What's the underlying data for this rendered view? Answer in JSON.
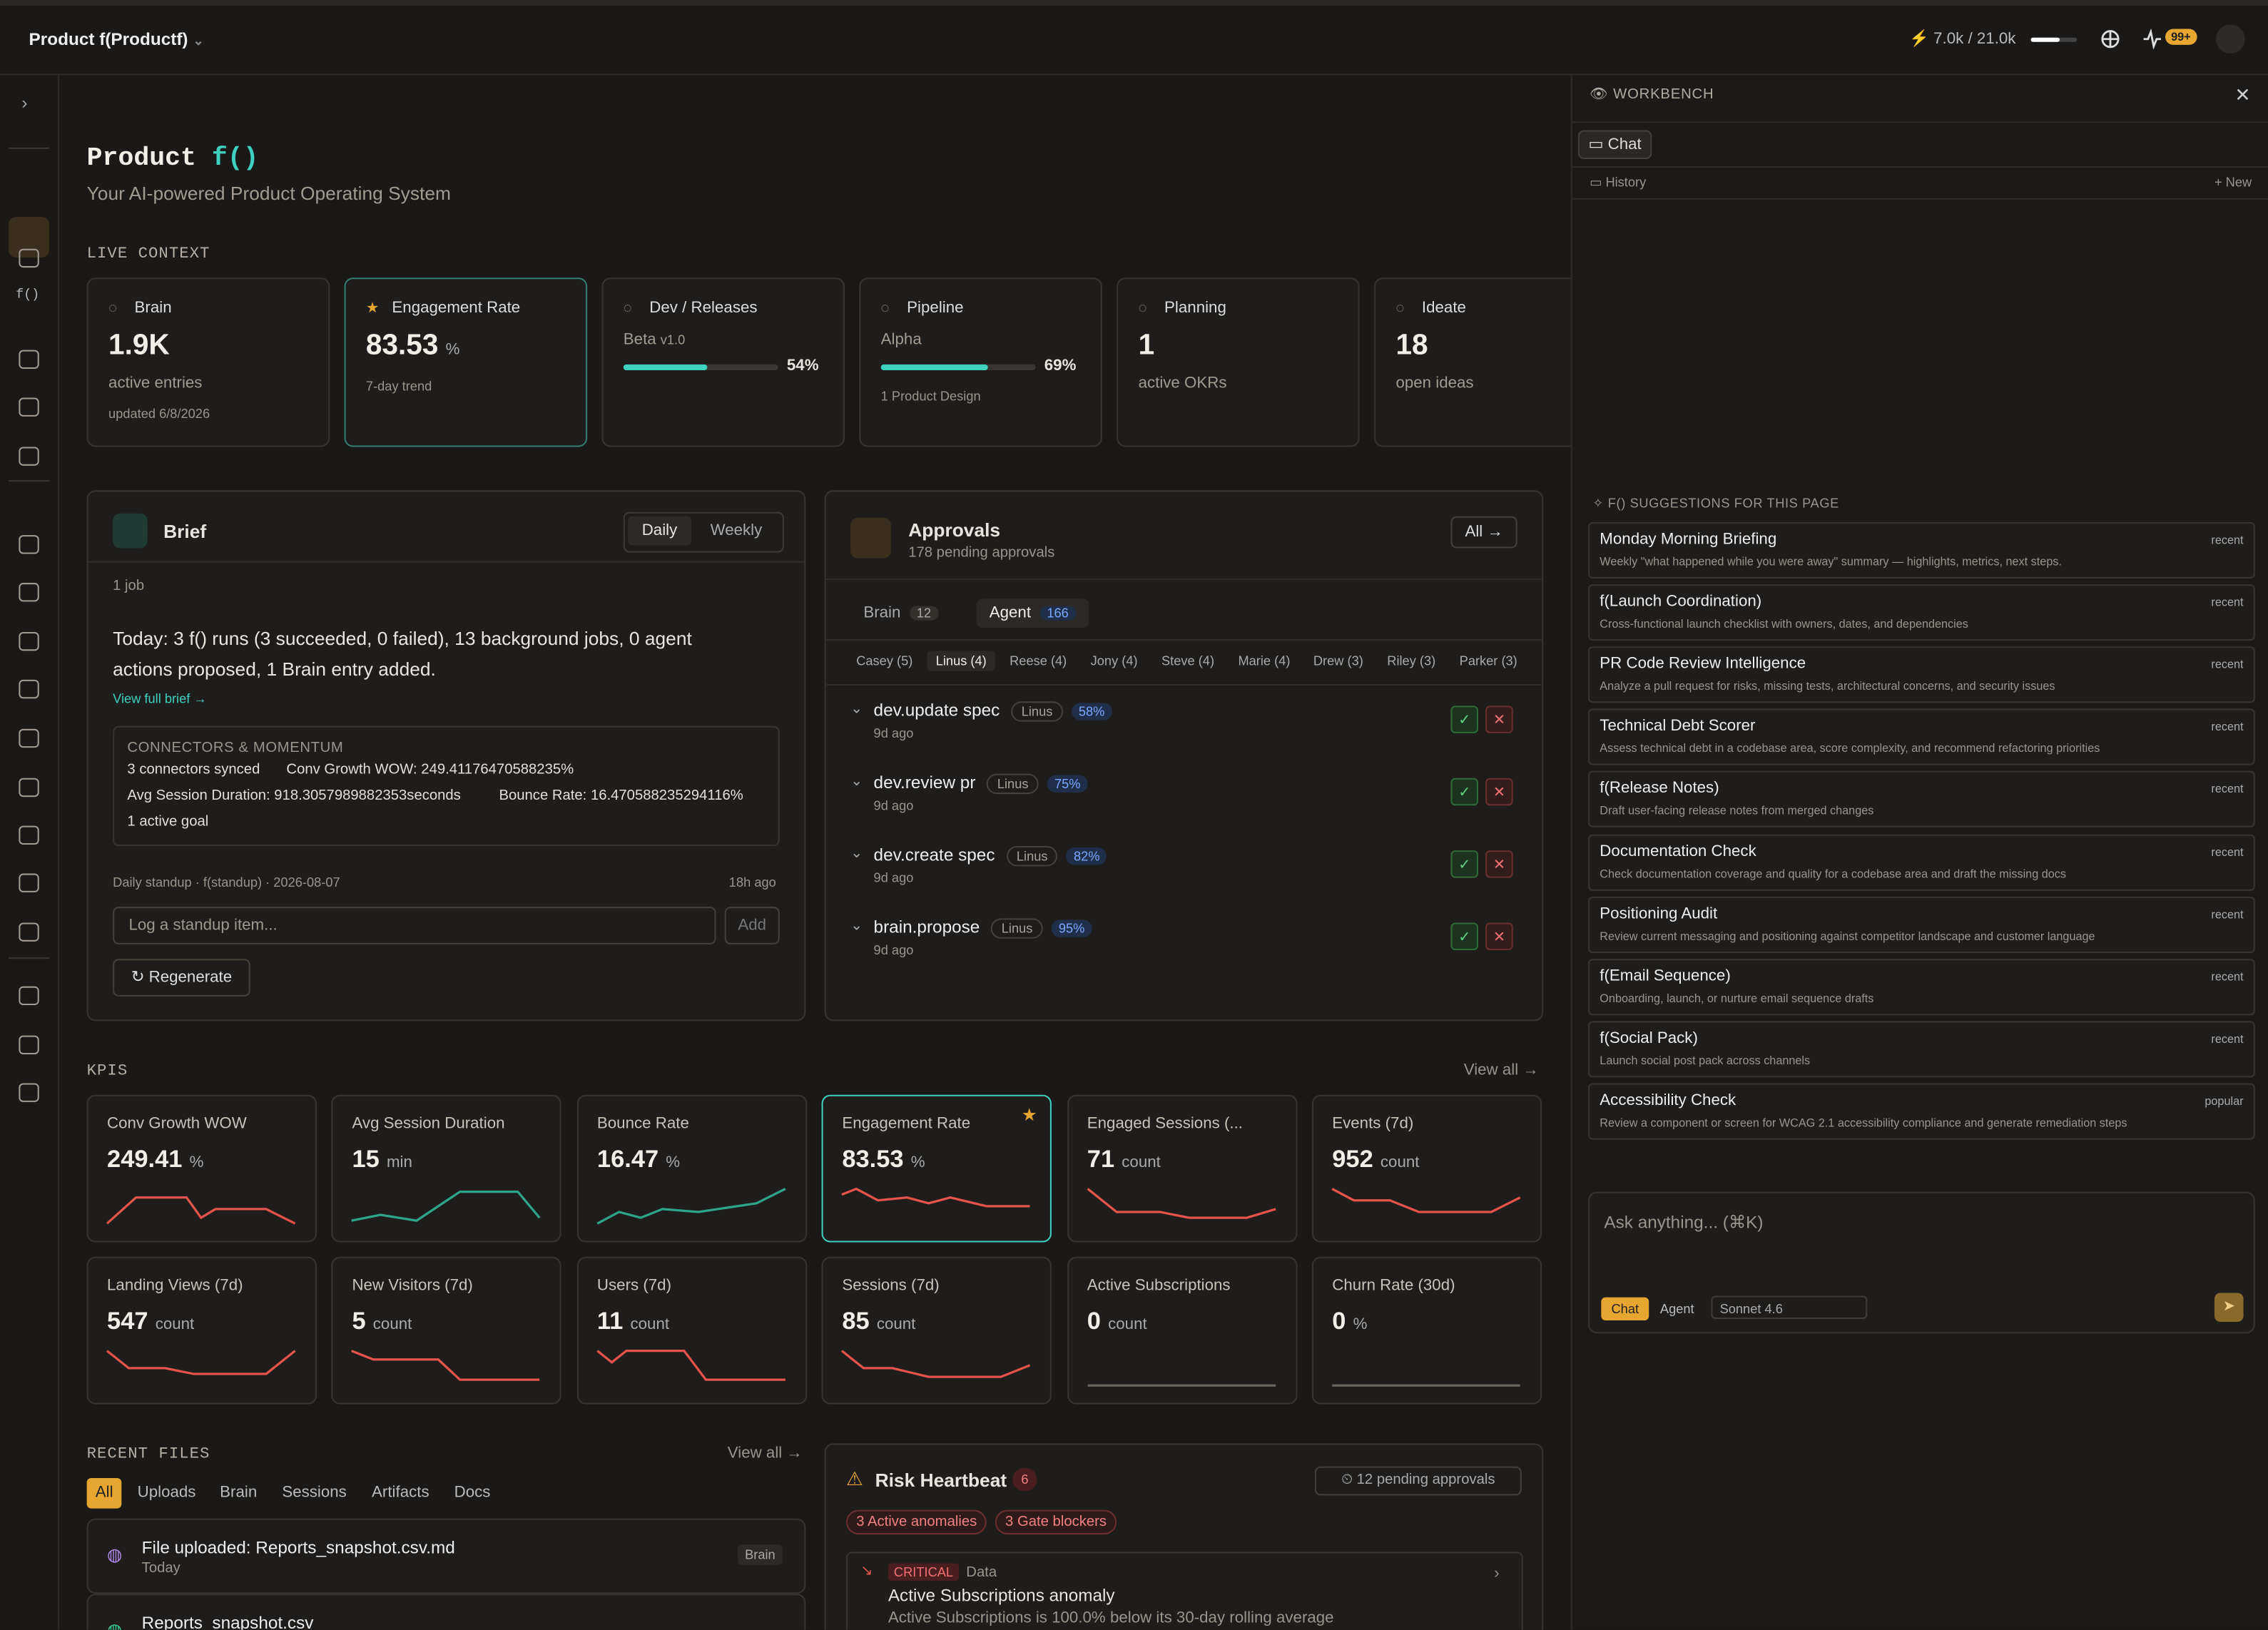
{
  "header": {
    "product": "Product f(Productf)",
    "usage": "7.0k / 21.0k",
    "badge": "99+"
  },
  "sidebar": {
    "fn_label": "f()"
  },
  "page": {
    "title": "Product",
    "title_fn": "f()",
    "subtitle": "Your AI-powered Product Operating System"
  },
  "live_context": {
    "label": "LIVE CONTEXT",
    "cards": [
      {
        "label": "Brain",
        "value": "1.9K",
        "sub": "active entries",
        "note": "updated 6/8/2026"
      },
      {
        "label": "Engagement Rate",
        "value": "83.53",
        "unit": "%",
        "note": "7-day trend",
        "starred": true
      },
      {
        "label": "Dev / Releases",
        "sub": "Beta",
        "version": "v1.0",
        "progress": 54,
        "progress_label": "54%"
      },
      {
        "label": "Pipeline",
        "sub": "Alpha",
        "progress": 69,
        "progress_label": "69%",
        "note": "1 Product Design"
      },
      {
        "label": "Planning",
        "value": "1",
        "sub": "active OKRs"
      },
      {
        "label": "Ideate",
        "value": "18",
        "sub": "open ideas"
      }
    ]
  },
  "brief": {
    "title": "Brief",
    "tabs": [
      "Daily",
      "Weekly"
    ],
    "jobs": "1 job",
    "summary": "Today: 3 f() runs (3 succeeded, 0 failed), 13 background jobs, 0 agent actions proposed, 1 Brain entry added.",
    "link": "View full brief →",
    "connectors_title": "CONNECTORS & MOMENTUM",
    "connectors": [
      [
        "3 connectors synced",
        "Conv Growth WOW: 249.41176470588235%"
      ],
      [
        "Avg Session Duration: 918.3057989882353seconds",
        "Bounce Rate: 16.470588235294116%"
      ],
      [
        "1 active goal"
      ]
    ],
    "standup": "Daily standup · f(standup) · 2026-08-07",
    "standup_time": "18h ago",
    "input_placeholder": "Log a standup item...",
    "add": "Add",
    "regenerate": "Regenerate"
  },
  "approvals": {
    "title": "Approvals",
    "subtitle": "178 pending approvals",
    "all": "All →",
    "tabs": [
      {
        "label": "Brain",
        "count": "12"
      },
      {
        "label": "Agent",
        "count": "166"
      }
    ],
    "people": [
      "Casey (5)",
      "Linus (4)",
      "Reese (4)",
      "Jony (4)",
      "Steve (4)",
      "Marie (4)",
      "Drew (3)",
      "Riley (3)",
      "Parker (3)"
    ],
    "items": [
      {
        "name": "dev.update spec",
        "owner": "Linus",
        "pct": "58%",
        "age": "9d ago"
      },
      {
        "name": "dev.review pr",
        "owner": "Linus",
        "pct": "75%",
        "age": "9d ago"
      },
      {
        "name": "dev.create spec",
        "owner": "Linus",
        "pct": "82%",
        "age": "9d ago"
      },
      {
        "name": "brain.propose",
        "owner": "Linus",
        "pct": "95%",
        "age": "9d ago"
      }
    ]
  },
  "kpis": {
    "label": "KPIS",
    "view_all": "View all →",
    "cards": [
      {
        "label": "Conv Growth WOW",
        "value": "249.41",
        "unit": "%"
      },
      {
        "label": "Avg Session Duration",
        "value": "15",
        "unit": "min"
      },
      {
        "label": "Bounce Rate",
        "value": "16.47",
        "unit": "%"
      },
      {
        "label": "Engagement Rate",
        "value": "83.53",
        "unit": "%",
        "starred": true
      },
      {
        "label": "Engaged Sessions (...",
        "value": "71",
        "unit": "count"
      },
      {
        "label": "Events (7d)",
        "value": "952",
        "unit": "count"
      },
      {
        "label": "Landing Views (7d)",
        "value": "547",
        "unit": "count"
      },
      {
        "label": "New Visitors (7d)",
        "value": "5",
        "unit": "count"
      },
      {
        "label": "Users (7d)",
        "value": "11",
        "unit": "count"
      },
      {
        "label": "Sessions (7d)",
        "value": "85",
        "unit": "count"
      },
      {
        "label": "Active Subscriptions",
        "value": "0",
        "unit": "count"
      },
      {
        "label": "Churn Rate (30d)",
        "value": "0",
        "unit": "%"
      }
    ]
  },
  "recent_files": {
    "label": "RECENT FILES",
    "view_all": "View all →",
    "tabs": [
      "All",
      "Uploads",
      "Brain",
      "Sessions",
      "Artifacts",
      "Docs"
    ],
    "files": [
      {
        "name": "File uploaded: Reports_snapshot.csv.md",
        "date": "Today",
        "tag": "Brain"
      },
      {
        "name": "Reports_snapshot.csv"
      }
    ]
  },
  "risk": {
    "title": "Risk Heartbeat",
    "count": "6",
    "pending": "12 pending approvals",
    "chips": [
      "3 Active anomalies",
      "3 Gate blockers"
    ],
    "item": {
      "severity": "CRITICAL",
      "area": "Data",
      "title": "Active Subscriptions anomaly",
      "desc": "Active Subscriptions is 100.0% below its 30-day rolling average"
    }
  },
  "workbench": {
    "title": "WORKBENCH",
    "chat_tab": "Chat",
    "history": "History",
    "new": "+ New",
    "suggestions_title": "F() SUGGESTIONS FOR THIS PAGE",
    "suggestions": [
      {
        "title": "Monday Morning Briefing",
        "desc": "Weekly \"what happened while you were away\" summary — highlights, metrics, next steps.",
        "tag": "recent"
      },
      {
        "title": "f(Launch Coordination)",
        "desc": "Cross-functional launch checklist with owners, dates, and dependencies",
        "tag": "recent"
      },
      {
        "title": "PR Code Review Intelligence",
        "desc": "Analyze a pull request for risks, missing tests, architectural concerns, and security issues",
        "tag": "recent"
      },
      {
        "title": "Technical Debt Scorer",
        "desc": "Assess technical debt in a codebase area, score complexity, and recommend refactoring priorities",
        "tag": "recent"
      },
      {
        "title": "f(Release Notes)",
        "desc": "Draft user-facing release notes from merged changes",
        "tag": "recent"
      },
      {
        "title": "Documentation Check",
        "desc": "Check documentation coverage and quality for a codebase area and draft the missing docs",
        "tag": "recent"
      },
      {
        "title": "Positioning Audit",
        "desc": "Review current messaging and positioning against competitor landscape and customer language",
        "tag": "recent"
      },
      {
        "title": "f(Email Sequence)",
        "desc": "Onboarding, launch, or nurture email sequence drafts",
        "tag": "recent"
      },
      {
        "title": "f(Social Pack)",
        "desc": "Launch social post pack across channels",
        "tag": "recent"
      },
      {
        "title": "Accessibility Check",
        "desc": "Review a component or screen for WCAG 2.1 accessibility compliance and generate remediation steps",
        "tag": "popular"
      }
    ],
    "input_placeholder": "Ask anything... (⌘K)",
    "modes": [
      "Chat",
      "Agent"
    ],
    "model": "Sonnet 4.6"
  }
}
